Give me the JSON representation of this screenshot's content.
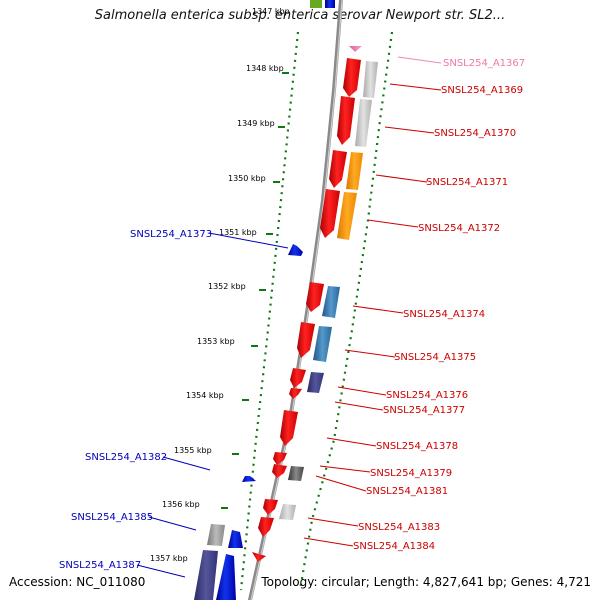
{
  "title": "Salmonella enterica subsp. enterica serovar Newport str. SL2...",
  "top_tick_partial": "1347 kbp",
  "accession": "Accession: NC_011080",
  "topology": "Topology: circular; Length: 4,827,641 bp; Genes: 4,721",
  "colors": {
    "gene_red": "#ff0000",
    "gene_blue": "#0000cc",
    "gene_pink": "#ee88bb",
    "label_red": "#cc0000",
    "label_blue": "#0000bb",
    "label_pink": "#ee77aa",
    "orange": "#ff9900",
    "steel_blue": "#3377aa",
    "slate": "#444488",
    "gray": "#888888",
    "light_gray": "#c8c8c8",
    "dark_gray": "#555555",
    "tick_green": "#117711",
    "backbone": "#888888"
  },
  "ticks": [
    {
      "label": "1348 kbp"
    },
    {
      "label": "1349 kbp"
    },
    {
      "label": "1350 kbp"
    },
    {
      "label": "1351 kbp"
    },
    {
      "label": "1352 kbp"
    },
    {
      "label": "1353 kbp"
    },
    {
      "label": "1354 kbp"
    },
    {
      "label": "1355 kbp"
    },
    {
      "label": "1356 kbp"
    },
    {
      "label": "1357 kbp"
    }
  ],
  "gene_labels": [
    {
      "text": "SNSL254_A1367",
      "color": "pink",
      "side": "right"
    },
    {
      "text": "SNSL254_A1369",
      "color": "red",
      "side": "right"
    },
    {
      "text": "SNSL254_A1370",
      "color": "red",
      "side": "right"
    },
    {
      "text": "SNSL254_A1371",
      "color": "red",
      "side": "right"
    },
    {
      "text": "SNSL254_A1372",
      "color": "red",
      "side": "right"
    },
    {
      "text": "SNSL254_A1373",
      "color": "blue",
      "side": "left"
    },
    {
      "text": "SNSL254_A1374",
      "color": "red",
      "side": "right"
    },
    {
      "text": "SNSL254_A1375",
      "color": "red",
      "side": "right"
    },
    {
      "text": "SNSL254_A1376",
      "color": "red",
      "side": "right"
    },
    {
      "text": "SNSL254_A1377",
      "color": "red",
      "side": "right"
    },
    {
      "text": "SNSL254_A1378",
      "color": "red",
      "side": "right"
    },
    {
      "text": "SNSL254_A1379",
      "color": "red",
      "side": "right"
    },
    {
      "text": "SNSL254_A1381",
      "color": "red",
      "side": "right"
    },
    {
      "text": "SNSL254_A1382",
      "color": "blue",
      "side": "left"
    },
    {
      "text": "SNSL254_A1383",
      "color": "red",
      "side": "right"
    },
    {
      "text": "SNSL254_A1384",
      "color": "red",
      "side": "right"
    },
    {
      "text": "SNSL254_A1385",
      "color": "blue",
      "side": "left"
    },
    {
      "text": "SNSL254_A1387",
      "color": "blue",
      "side": "left"
    }
  ]
}
